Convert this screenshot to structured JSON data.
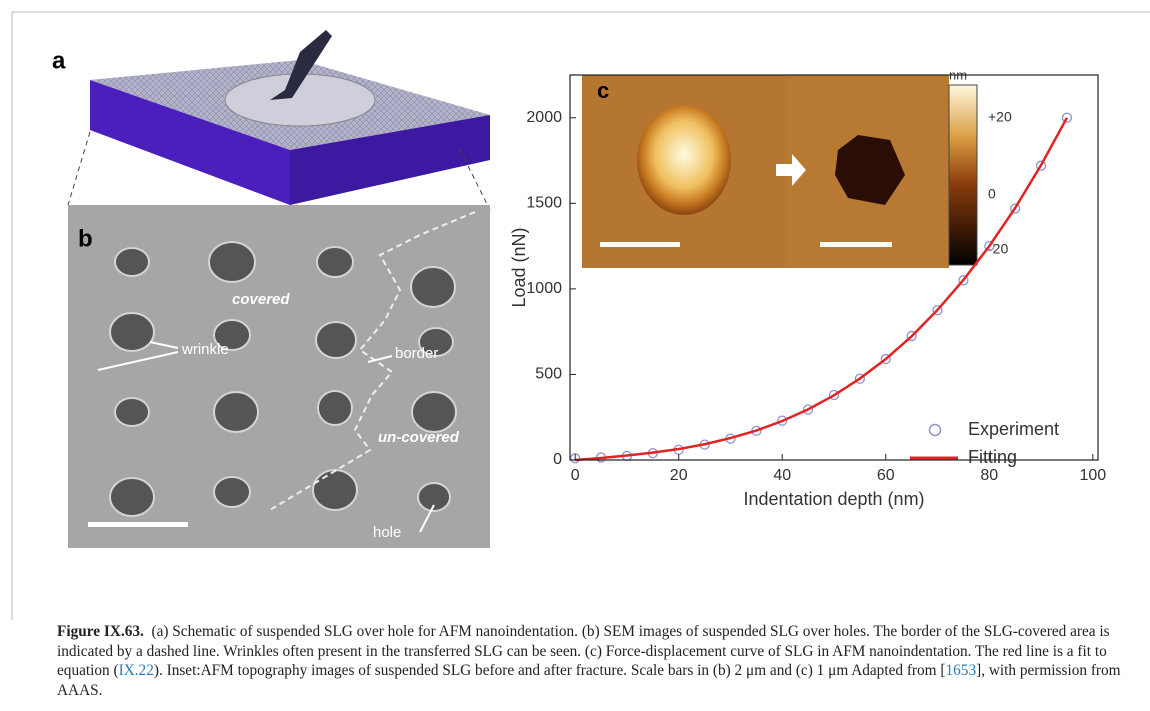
{
  "panel_labels": [
    "a",
    "b",
    "c"
  ],
  "sem_labels": {
    "covered": "covered",
    "wrinkle": "wrinkle",
    "border": "border",
    "uncovered": "un-covered",
    "hole": "hole"
  },
  "inset": {
    "colorbar_unit": "nm",
    "colorbar_ticks": [
      "+20",
      "0",
      "-20"
    ]
  },
  "chart_data": {
    "type": "line",
    "x_label": "Indentation depth (nm)",
    "y_label": "Load (nN)",
    "x": [
      0,
      5,
      10,
      15,
      20,
      25,
      30,
      35,
      40,
      45,
      50,
      55,
      60,
      65,
      70,
      75,
      80,
      85,
      90,
      95
    ],
    "series": [
      {
        "name": "Experiment",
        "color": "#8c92cc",
        "marker": "circle",
        "values": [
          10,
          15,
          24,
          40,
          60,
          90,
          125,
          170,
          230,
          295,
          380,
          475,
          590,
          725,
          875,
          1050,
          1250,
          1470,
          1720,
          2000
        ]
      },
      {
        "name": "Fitting",
        "color": "#e02424",
        "marker": "line",
        "values": [
          0,
          12,
          26,
          43,
          64,
          92,
          128,
          172,
          228,
          296,
          378,
          476,
          590,
          723,
          877,
          1052,
          1250,
          1473,
          1723,
          2000
        ]
      }
    ],
    "xlim": [
      -1,
      101
    ],
    "ylim": [
      0,
      2250
    ],
    "xticks": [
      0,
      20,
      40,
      60,
      80,
      100
    ],
    "yticks": [
      0,
      500,
      1000,
      1500,
      2000
    ]
  },
  "caption": {
    "label": "Figure IX.63.",
    "parts": [
      "(a) Schematic of suspended SLG over hole for AFM nanoindentation. (b) SEM images of suspended SLG over holes. The border of the SLG-covered area is indicated by a dashed line. Wrinkles often present in the transferred SLG can be seen. (c) Force-displacement curve of SLG in AFM nanoindentation. The red line is a fit to equation (",
      "IX.22",
      "). Inset:AFM topography images of suspended SLG before and after fracture. Scale bars in (b) 2 μm and (c) 1 μm Adapted from [",
      "1653",
      "], with permission from AAAS."
    ]
  }
}
